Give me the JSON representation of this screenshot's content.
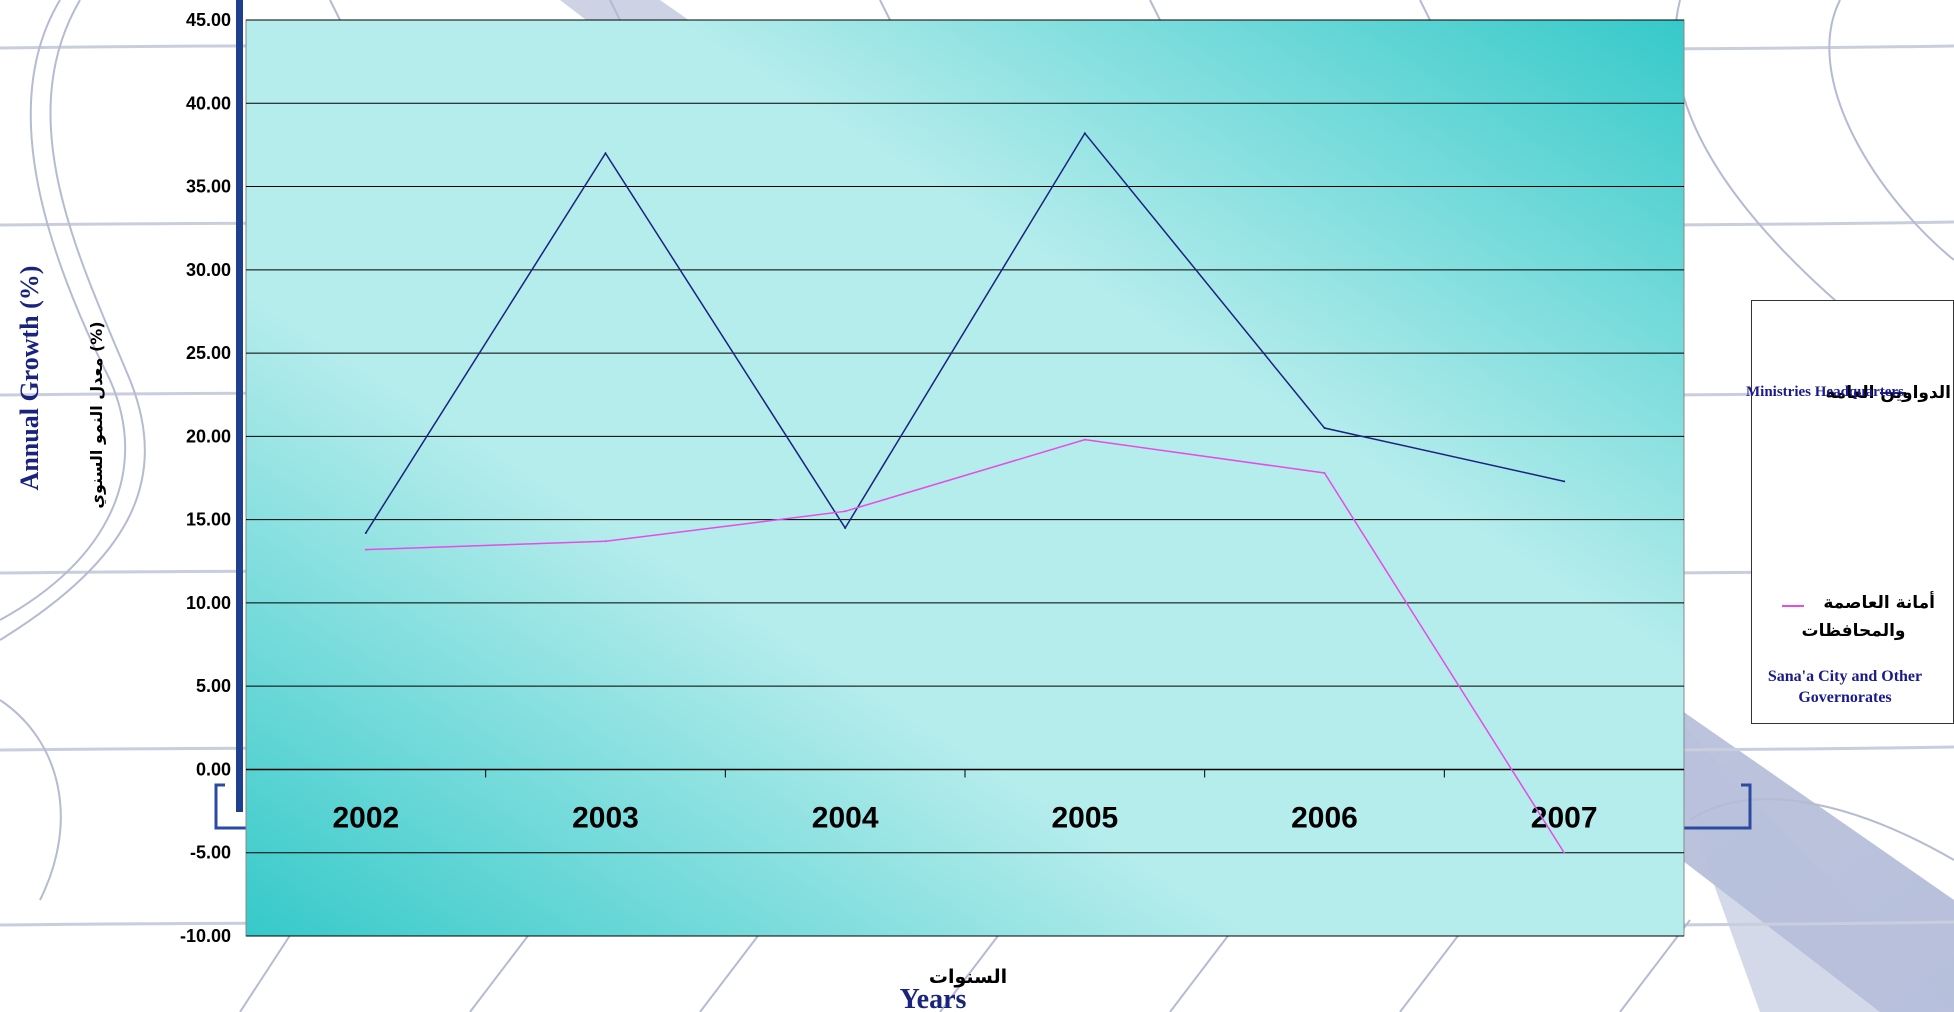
{
  "chart_data": {
    "type": "line",
    "categories": [
      "2002",
      "2003",
      "2004",
      "2005",
      "2006",
      "2007"
    ],
    "series": [
      {
        "name": "Ministries Headquarters",
        "name_ar": "الدواوين العامة",
        "color": "#1a237e",
        "values": [
          14.2,
          37.0,
          14.5,
          38.2,
          20.5,
          17.3
        ]
      },
      {
        "name": "Sana'a City and Other Governorates",
        "name_ar": "أمانة العاصمة والمحافظات",
        "color": "#e64ce6",
        "values": [
          13.2,
          13.7,
          15.5,
          19.8,
          17.8,
          -5.0
        ]
      }
    ],
    "yticks": [
      "45.00",
      "40.00",
      "35.00",
      "30.00",
      "25.00",
      "20.00",
      "15.00",
      "10.00",
      "5.00",
      "0.00",
      "-5.00",
      "-10.00"
    ],
    "ylim": [
      -10,
      45
    ],
    "ylabel": "Annual Growth (%)",
    "ylabel_ar": "معدل النمو السنوي (%)",
    "xlabel": "Years",
    "xlabel_ar": "السنوات",
    "grid": true,
    "legend_position": "right"
  },
  "legend": {
    "item1_en": "Ministries Headquarters",
    "item1_ar": "الدواوين العامة",
    "item2_ar_line1": "أمانة العاصمة",
    "item2_ar_line2": "والمحافظات",
    "item2_en": "Sana'a City and Other Governorates"
  }
}
